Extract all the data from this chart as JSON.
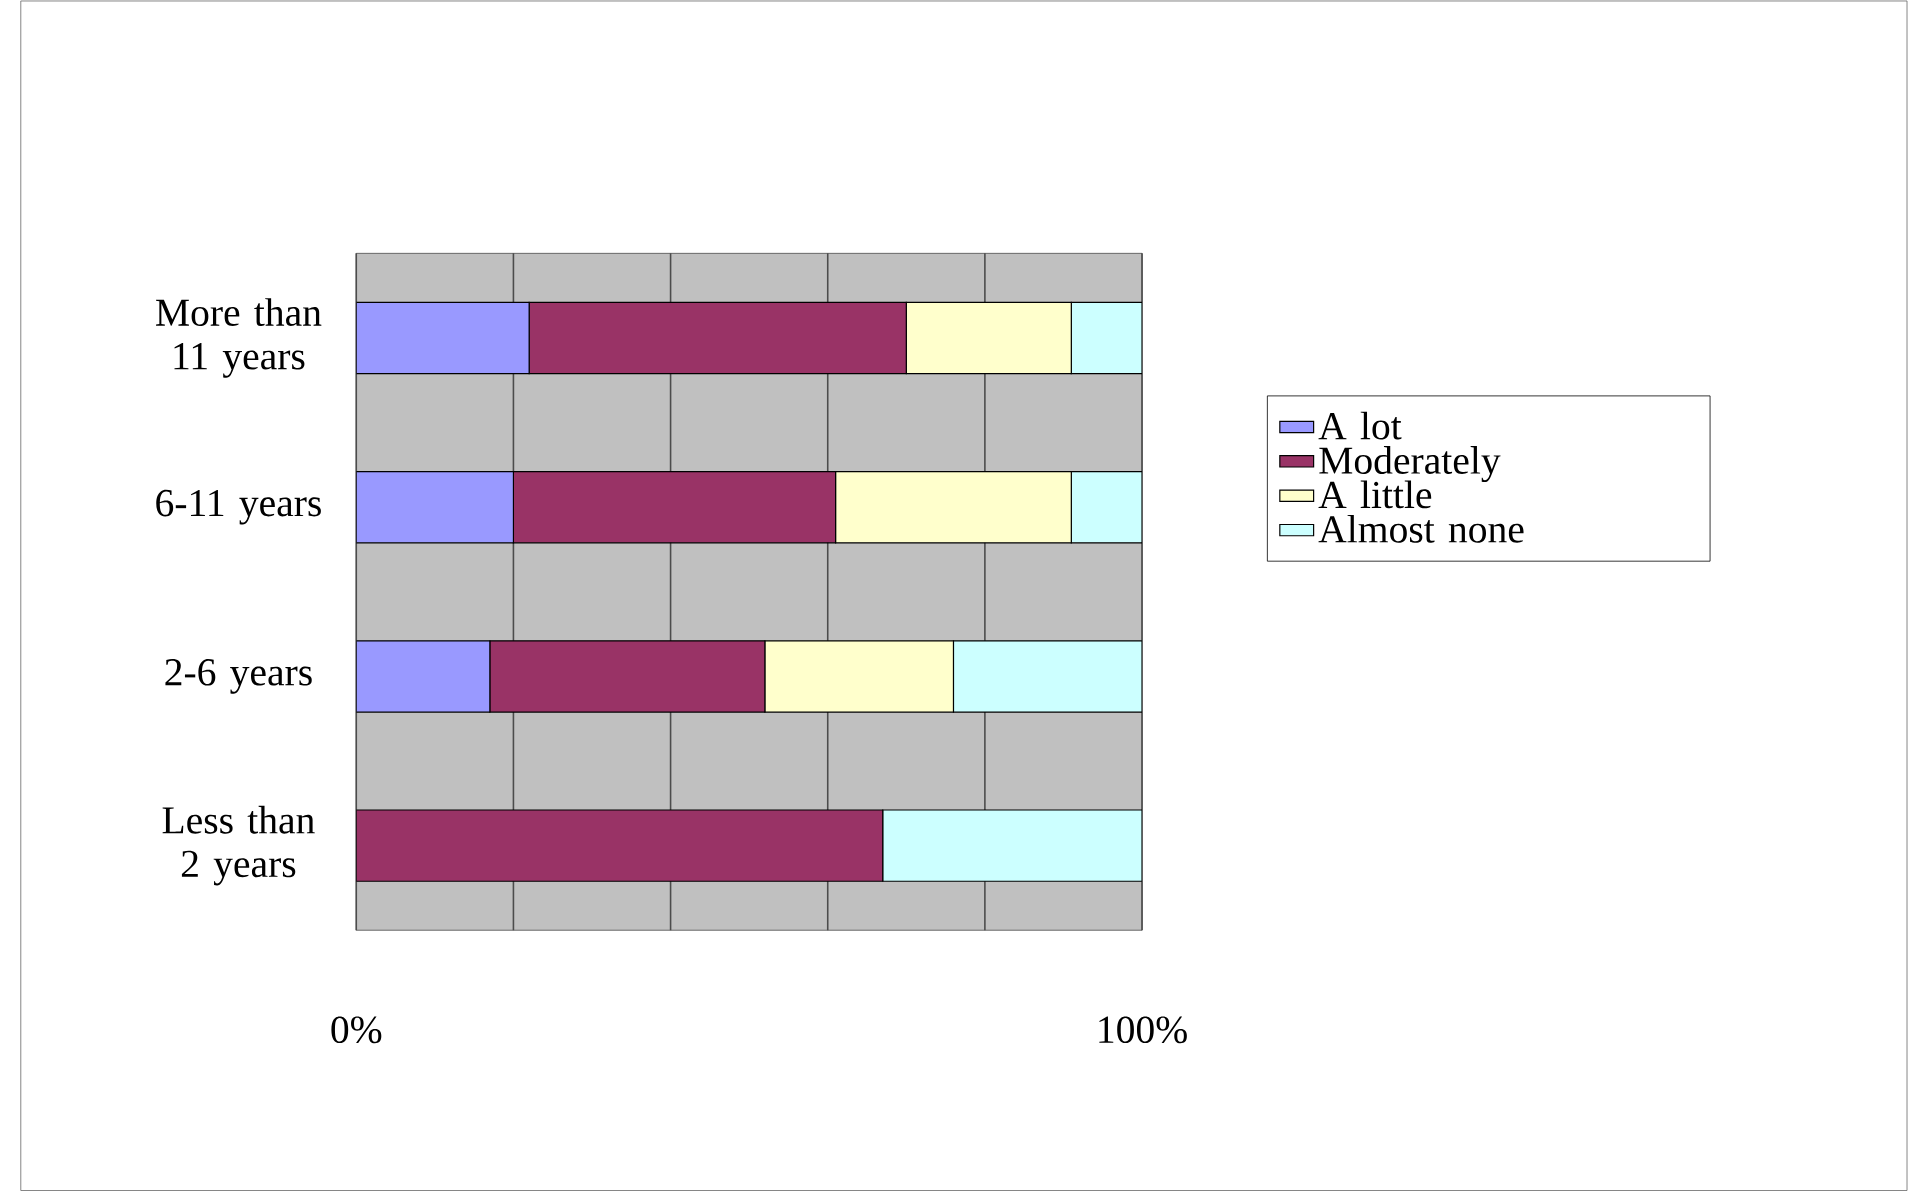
{
  "chart_data": {
    "type": "bar",
    "orientation": "horizontal",
    "stacked": true,
    "categories": [
      "More than 11 years",
      "6-11 years",
      "2-6 years",
      "Less than 2 years"
    ],
    "series": [
      {
        "name": "A lot",
        "color": "#9999ff",
        "values": [
          22,
          20,
          17,
          0
        ]
      },
      {
        "name": "Moderately",
        "color": "#993366",
        "values": [
          48,
          41,
          35,
          67
        ]
      },
      {
        "name": "A little",
        "color": "#ffffcc",
        "values": [
          21,
          30,
          24,
          0
        ]
      },
      {
        "name": "Almost none",
        "color": "#ccffff",
        "values": [
          9,
          9,
          24,
          33
        ]
      }
    ],
    "xlim": [
      0,
      100
    ],
    "xticks": [
      {
        "value": 0,
        "label": "0%"
      },
      {
        "value": 20,
        "label": null
      },
      {
        "value": 40,
        "label": null
      },
      {
        "value": 60,
        "label": null
      },
      {
        "value": 80,
        "label": null
      },
      {
        "value": 100,
        "label": "100%"
      }
    ],
    "grid": "x",
    "legend": "right"
  }
}
